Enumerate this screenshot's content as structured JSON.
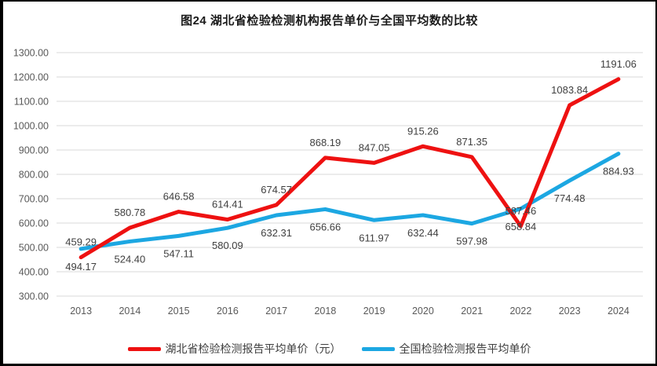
{
  "title": "图24 湖北省检验检测机构报告单价与全国平均数的比较",
  "colors": {
    "hubei_line": "#EE1111",
    "national_line": "#1CA7E2",
    "gridline": "#D9D9D9",
    "axis_text": "#595959",
    "data_label_text": "#3F3F3F",
    "title_text": "#1A1A1A"
  },
  "legend": {
    "items": [
      {
        "label": "湖北省检验检测报告平均单价（元）",
        "color_key": "hubei_line"
      },
      {
        "label": "全国检验检测报告平均单价",
        "color_key": "national_line"
      }
    ]
  },
  "chart_data": {
    "type": "line",
    "categories": [
      "2013",
      "2014",
      "2015",
      "2016",
      "2017",
      "2018",
      "2019",
      "2020",
      "2021",
      "2022",
      "2023",
      "2024"
    ],
    "series": [
      {
        "name": "全国检验检测报告平均单价",
        "color_key": "national_line",
        "label_position": "below",
        "values": [
          494.17,
          524.4,
          547.11,
          580.09,
          632.31,
          656.66,
          611.97,
          632.44,
          597.98,
          658.84,
          774.48,
          884.93
        ]
      },
      {
        "name": "湖北省检验检测报告平均单价（元）",
        "color_key": "hubei_line",
        "label_position": "above",
        "values": [
          459.29,
          580.78,
          646.58,
          614.41,
          674.57,
          868.19,
          847.05,
          915.26,
          871.35,
          587.46,
          1083.84,
          1191.06
        ]
      }
    ],
    "ylim": [
      300,
      1300
    ],
    "ytick_step": 100,
    "ytick_format_decimals": 2,
    "grid": true,
    "legend_position": "bottom",
    "xlabel": "",
    "ylabel": ""
  }
}
